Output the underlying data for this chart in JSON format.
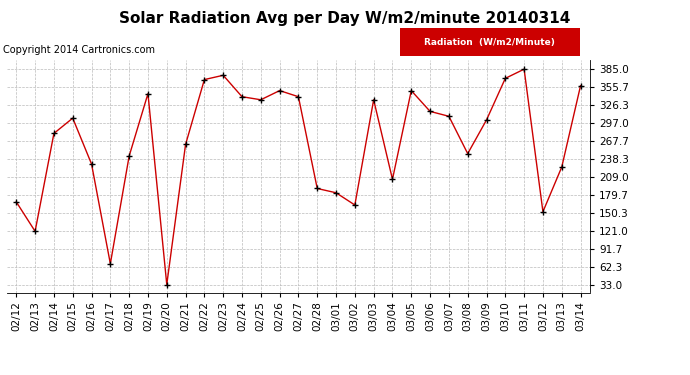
{
  "title": "Solar Radiation Avg per Day W/m2/minute 20140314",
  "copyright": "Copyright 2014 Cartronics.com",
  "legend_label": "Radiation  (W/m2/Minute)",
  "dates": [
    "02/12",
    "02/13",
    "02/14",
    "02/15",
    "02/16",
    "02/17",
    "02/18",
    "02/19",
    "02/20",
    "02/21",
    "02/22",
    "02/23",
    "02/24",
    "02/25",
    "02/26",
    "02/27",
    "02/28",
    "03/01",
    "03/02",
    "03/03",
    "03/04",
    "03/05",
    "03/06",
    "03/07",
    "03/08",
    "03/09",
    "03/10",
    "03/11",
    "03/12",
    "03/13",
    "03/14"
  ],
  "values": [
    168,
    120,
    280,
    305,
    230,
    67,
    243,
    345,
    33,
    262,
    368,
    375,
    340,
    335,
    350,
    340,
    190,
    183,
    163,
    335,
    205,
    350,
    316,
    308,
    247,
    302,
    370,
    385,
    152,
    225,
    358
  ],
  "line_color": "#cc0000",
  "marker_color": "#000000",
  "background_color": "#ffffff",
  "plot_bg_color": "#ffffff",
  "grid_color": "#bbbbbb",
  "legend_bg": "#cc0000",
  "legend_text_color": "#ffffff",
  "title_fontsize": 11,
  "copyright_fontsize": 7,
  "tick_fontsize": 7.5,
  "ytick_values": [
    33.0,
    62.3,
    91.7,
    121.0,
    150.3,
    179.7,
    209.0,
    238.3,
    267.7,
    297.0,
    326.3,
    355.7,
    385.0
  ],
  "ylim": [
    20,
    400
  ]
}
